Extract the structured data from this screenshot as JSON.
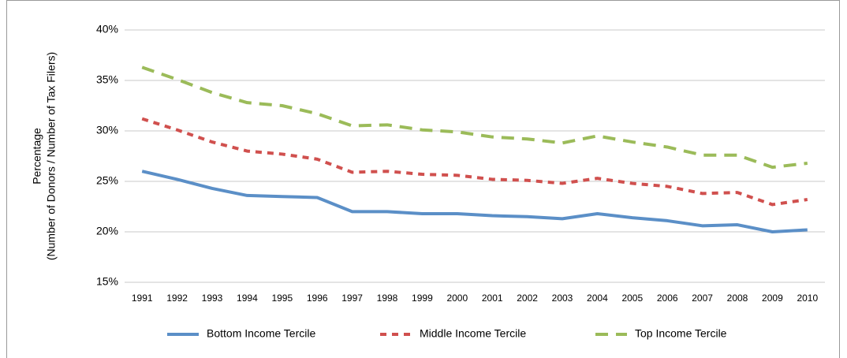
{
  "chart_data": {
    "type": "line",
    "ylabel": [
      "Percentage",
      "(Number of Donors / Number of Tax Filers)"
    ],
    "categories": [
      "1991",
      "1992",
      "1993",
      "1994",
      "1995",
      "1996",
      "1997",
      "1998",
      "1999",
      "2000",
      "2001",
      "2002",
      "2003",
      "2004",
      "2005",
      "2006",
      "2007",
      "2008",
      "2009",
      "2010"
    ],
    "series": [
      {
        "name": "Bottom Income Tercile",
        "color": "#5b8fc7",
        "line_style": "solid",
        "values": [
          26.0,
          25.2,
          24.3,
          23.6,
          23.5,
          23.4,
          22.0,
          22.0,
          21.8,
          21.8,
          21.6,
          21.5,
          21.3,
          21.8,
          21.4,
          21.1,
          20.6,
          20.7,
          20.0,
          20.2
        ]
      },
      {
        "name": "Middle Income Tercile",
        "color": "#d0504e",
        "line_style": "dotted",
        "values": [
          31.2,
          30.1,
          28.9,
          28.0,
          27.7,
          27.2,
          25.9,
          26.0,
          25.7,
          25.6,
          25.2,
          25.1,
          24.8,
          25.3,
          24.8,
          24.5,
          23.8,
          23.9,
          22.7,
          23.2
        ]
      },
      {
        "name": "Top Income Tercile",
        "color": "#9bbb59",
        "line_style": "dashed",
        "values": [
          36.3,
          35.1,
          33.8,
          32.8,
          32.5,
          31.7,
          30.5,
          30.6,
          30.1,
          29.9,
          29.4,
          29.2,
          28.8,
          29.5,
          28.9,
          28.4,
          27.6,
          27.6,
          26.4,
          26.8
        ]
      }
    ],
    "ylim": [
      15,
      40
    ],
    "yticks": [
      {
        "value": 15,
        "label": "15%"
      },
      {
        "value": 20,
        "label": "20%"
      },
      {
        "value": 25,
        "label": "25%"
      },
      {
        "value": 30,
        "label": "30%"
      },
      {
        "value": 35,
        "label": "35%"
      },
      {
        "value": 40,
        "label": "40%"
      }
    ],
    "grid": true,
    "legend": "bottom"
  }
}
